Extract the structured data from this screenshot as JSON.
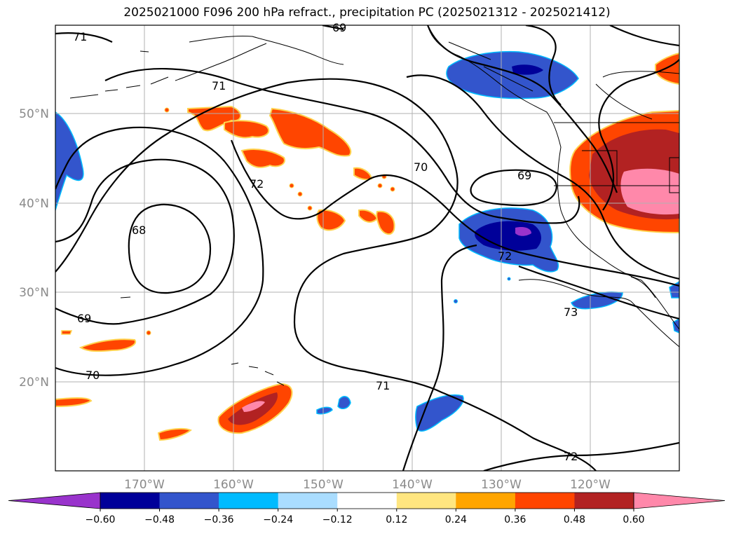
{
  "title": "2025021000 F096 200 hPa refract., precipitation PC (2025021312 - 2025021412)",
  "map": {
    "lat_labels": [
      "50°N",
      "40°N",
      "30°N",
      "20°N"
    ],
    "lon_labels": [
      "170°W",
      "160°W",
      "150°W",
      "140°W",
      "130°W",
      "120°W"
    ],
    "contour_labels": [
      "71",
      "69",
      "71",
      "72",
      "68",
      "69",
      "70",
      "70",
      "69",
      "72",
      "73",
      "71",
      "72"
    ]
  },
  "colorbar": {
    "ticks": [
      "−0.60",
      "−0.48",
      "−0.36",
      "−0.24",
      "−0.12",
      "0.12",
      "0.24",
      "0.36",
      "0.48",
      "0.60"
    ],
    "colors": [
      "#9933cc",
      "#000099",
      "#3355cc",
      "#00bbff",
      "#aaddff",
      "#ffffff",
      "#ffe680",
      "#ffa500",
      "#ff4500",
      "#b22222",
      "#ff88aa"
    ]
  },
  "colors": {
    "contour": "#000000",
    "coast": "#000000",
    "grid": "#b0b0b0"
  }
}
